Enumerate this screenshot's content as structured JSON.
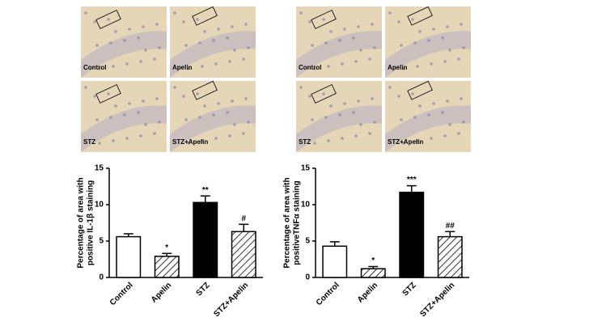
{
  "micrographs": [
    {
      "labels": [
        "Control",
        "Apelin",
        "STZ",
        "STZ+Apelin"
      ]
    },
    {
      "labels": [
        "Control",
        "Apelin",
        "STZ",
        "STZ+Apelin"
      ]
    }
  ],
  "chart_data": [
    {
      "type": "bar",
      "ylabel": [
        "Percentage of area with",
        "positive IL-1β staining"
      ],
      "categories": [
        "Control",
        "Apelin",
        "STZ",
        "STZ+Apelin"
      ],
      "values": [
        5.6,
        2.9,
        10.3,
        6.3
      ],
      "errors": [
        0.4,
        0.4,
        0.9,
        1.0
      ],
      "annotations": [
        null,
        "*",
        "**",
        "#"
      ],
      "fills": [
        "#ffffff",
        "hatch",
        "#000000",
        "hatch"
      ],
      "ylim": [
        0,
        15
      ],
      "yticks": [
        0,
        5,
        10,
        15
      ]
    },
    {
      "type": "bar",
      "ylabel": [
        "Percentage of area with",
        "positiveTNFα  staining"
      ],
      "categories": [
        "Control",
        "Apelin",
        "STZ",
        "STZ+Apelin"
      ],
      "values": [
        4.3,
        1.2,
        11.7,
        5.6
      ],
      "errors": [
        0.6,
        0.3,
        0.9,
        0.7
      ],
      "annotations": [
        null,
        "*",
        "***",
        "##"
      ],
      "fills": [
        "#ffffff",
        "hatch",
        "#000000",
        "hatch"
      ],
      "ylim": [
        0,
        15
      ],
      "yticks": [
        0,
        5,
        10,
        15
      ]
    }
  ]
}
